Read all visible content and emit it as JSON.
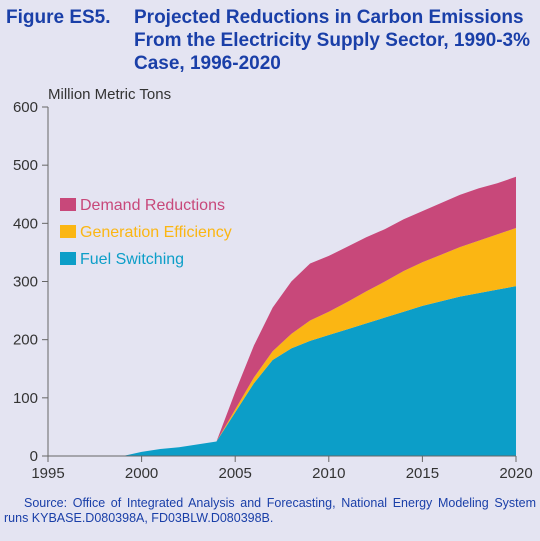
{
  "title": {
    "label": "Figure ES5.",
    "text": "Projected Reductions in Carbon Emissions From the Electricity Supply Sector, 1990-3% Case, 1996-2020"
  },
  "source": "Source: Office of Integrated Analysis and Forecasting, National Energy Modeling System runs KYBASE.D080398A, FD03BLW.D080398B.",
  "colors": {
    "fuel_switching": "#0c9ec8",
    "generation_efficiency": "#fbb613",
    "demand_reductions": "#c8487a",
    "axis": "#666666"
  },
  "chart_data": {
    "type": "area",
    "stacked": true,
    "ylabel": "Million Metric Tons",
    "xlim": [
      1995,
      2020
    ],
    "ylim": [
      0,
      600
    ],
    "xticks": [
      1995,
      2000,
      2005,
      2010,
      2015,
      2020
    ],
    "yticks": [
      0,
      100,
      200,
      300,
      400,
      500,
      600
    ],
    "legend_position": "center-left",
    "x": [
      1995,
      1996,
      1997,
      1998,
      1999,
      2000,
      2001,
      2002,
      2003,
      2004,
      2005,
      2006,
      2007,
      2008,
      2009,
      2010,
      2011,
      2012,
      2013,
      2014,
      2015,
      2016,
      2017,
      2018,
      2019,
      2020
    ],
    "series": [
      {
        "name": "Fuel Switching",
        "color": "#0c9ec8",
        "values": [
          0,
          0,
          0,
          0,
          0,
          7,
          12,
          15,
          20,
          25,
          75,
          125,
          165,
          185,
          198,
          208,
          218,
          228,
          238,
          248,
          258,
          266,
          274,
          280,
          286,
          292
        ]
      },
      {
        "name": "Generation Efficiency",
        "color": "#fbb613",
        "values": [
          0,
          0,
          0,
          0,
          0,
          0,
          0,
          0,
          0,
          0,
          5,
          10,
          15,
          25,
          35,
          40,
          47,
          55,
          62,
          70,
          75,
          80,
          85,
          90,
          95,
          100
        ]
      },
      {
        "name": "Demand Reductions",
        "color": "#c8487a",
        "values": [
          0,
          0,
          0,
          0,
          0,
          0,
          0,
          0,
          0,
          0,
          30,
          55,
          75,
          90,
          98,
          96,
          95,
          93,
          90,
          89,
          88,
          89,
          90,
          90,
          88,
          88
        ]
      }
    ]
  }
}
